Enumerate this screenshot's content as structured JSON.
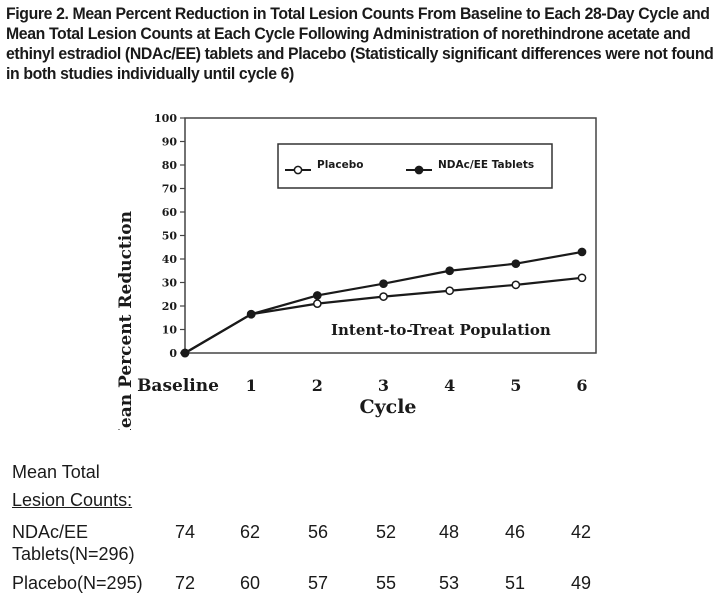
{
  "figure_title": "Figure 2. Mean Percent Reduction in Total Lesion Counts From Baseline to Each 28-Day Cycle and Mean Total Lesion Counts at Each Cycle Following Administration of norethindrone acetate and ethinyl estradiol (NDAc/EE) tablets and Placebo (Statistically significant differences were not found in both studies individually until cycle 6)",
  "chart_data": {
    "type": "line",
    "categories": [
      "Baseline",
      "1",
      "2",
      "3",
      "4",
      "5",
      "6"
    ],
    "series": [
      {
        "name": "Placebo",
        "values": [
          0,
          16.5,
          21,
          24,
          26.5,
          29,
          32
        ],
        "marker": "open-circle"
      },
      {
        "name": "NDAc/EE Tablets",
        "values": [
          0,
          16.5,
          24.5,
          29.5,
          35,
          38,
          43
        ],
        "marker": "filled-circle"
      }
    ],
    "xlabel": "Cycle",
    "ylabel": "Mean Percent Reduction",
    "ylim": [
      0,
      100
    ],
    "yticks": [
      "0",
      "10",
      "20",
      "30",
      "40",
      "50",
      "60",
      "70",
      "80",
      "90",
      "100"
    ],
    "annotation": "Intent-to-Treat Population",
    "legend_position": "top-right"
  },
  "table": {
    "header_line1": "Mean Total",
    "header_line2": "Lesion Counts:",
    "rows": [
      {
        "label_line1": "NDAc/EE",
        "label_line2": "Tablets(N=296)",
        "values": [
          "74",
          "62",
          "56",
          "52",
          "48",
          "46",
          "42"
        ]
      },
      {
        "label_line1": "Placebo(N=295)",
        "label_line2": "",
        "values": [
          "72",
          "60",
          "57",
          "55",
          "53",
          "51",
          "49"
        ]
      }
    ]
  },
  "colors": {
    "line": "#1a1a1a",
    "background": "#ffffff"
  }
}
